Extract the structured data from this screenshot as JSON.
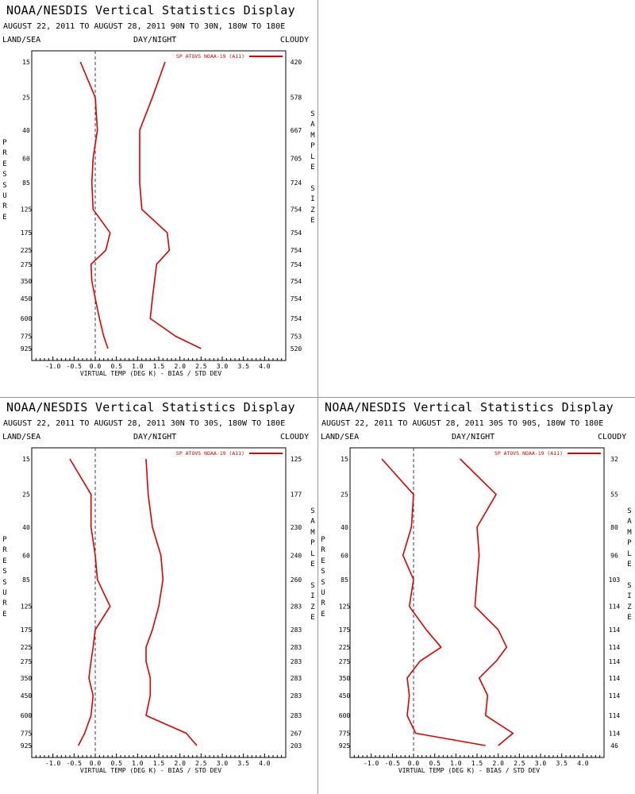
{
  "header": {
    "title": "NOAA/NESDIS Vertical Statistics Display",
    "land_sea": "LAND/SEA",
    "day_night": "DAY/NIGHT",
    "cloudy": "CLOUDY",
    "pressure_label": "PRESSURE",
    "sample_size_label": "SAMPLE SIZE",
    "xlabel": "VIRTUAL TEMP (DEG K) - BIAS / STD DEV"
  },
  "colors": {
    "series": "#e00000",
    "axis": "#000000",
    "zero_line": "#3a3a6a"
  },
  "chart_data": [
    {
      "type": "line",
      "subtitle": "AUGUST 22, 2011 TO AUGUST 28, 2011  90N TO 30N, 180W TO 180E",
      "legend": "SP ATOVS NOAA-19 (A11)",
      "xlim": [
        -1.5,
        4.5
      ],
      "xticks": [
        "-1.0",
        "-0.5",
        "0.0",
        "0.5",
        "1.0",
        "1.5",
        "2.0",
        "2.5",
        "3.0",
        "3.5",
        "4.0"
      ],
      "pressure_levels": [
        "15",
        "25",
        "40",
        "60",
        "85",
        "125",
        "175",
        "225",
        "275",
        "350",
        "450",
        "600",
        "775",
        "925"
      ],
      "sample_size": [
        "420",
        "578",
        "667",
        "705",
        "724",
        "754",
        "754",
        "754",
        "754",
        "754",
        "754",
        "754",
        "753",
        "520"
      ],
      "series": [
        {
          "values": [
            -0.35,
            0.0,
            0.05,
            -0.05,
            -0.08,
            -0.05,
            0.35,
            0.25,
            -0.1,
            -0.08,
            0.0,
            0.1,
            0.2,
            0.3
          ]
        },
        {
          "values": [
            1.65,
            1.35,
            1.05,
            1.05,
            1.05,
            1.1,
            1.7,
            1.75,
            1.45,
            1.4,
            1.35,
            1.3,
            1.9,
            2.5
          ]
        }
      ]
    },
    {
      "type": "line",
      "subtitle": "AUGUST 22, 2011 TO AUGUST 28, 2011  30N TO 30S, 180W TO 180E",
      "legend": "SP ATOVS NOAA-19 (A11)",
      "xlim": [
        -1.5,
        4.5
      ],
      "xticks": [
        "-1.0",
        "-0.5",
        "0.0",
        "0.5",
        "1.0",
        "1.5",
        "2.0",
        "2.5",
        "3.0",
        "3.5",
        "4.0"
      ],
      "pressure_levels": [
        "15",
        "25",
        "40",
        "60",
        "85",
        "125",
        "175",
        "225",
        "275",
        "350",
        "450",
        "600",
        "775",
        "925"
      ],
      "sample_size": [
        "125",
        "177",
        "230",
        "240",
        "260",
        "283",
        "283",
        "283",
        "283",
        "283",
        "283",
        "283",
        "267",
        "203"
      ],
      "series": [
        {
          "values": [
            -0.6,
            -0.1,
            -0.1,
            0.0,
            0.05,
            0.35,
            0.0,
            -0.05,
            -0.1,
            -0.15,
            -0.05,
            -0.1,
            -0.25,
            -0.4
          ]
        },
        {
          "values": [
            1.2,
            1.25,
            1.35,
            1.55,
            1.6,
            1.5,
            1.35,
            1.2,
            1.2,
            1.3,
            1.3,
            1.2,
            2.15,
            2.4
          ]
        }
      ]
    },
    {
      "type": "line",
      "subtitle": "AUGUST 22, 2011 TO AUGUST 28, 2011  30S TO 90S, 180W TO 180E",
      "legend": "SP ATOVS NOAA-19 (A11)",
      "xlim": [
        -1.5,
        4.5
      ],
      "xticks": [
        "-1.0",
        "-0.5",
        "0.0",
        "0.5",
        "1.0",
        "1.5",
        "2.0",
        "2.5",
        "3.0",
        "3.5",
        "4.0"
      ],
      "pressure_levels": [
        "15",
        "25",
        "40",
        "60",
        "85",
        "125",
        "175",
        "225",
        "275",
        "350",
        "450",
        "600",
        "775",
        "925"
      ],
      "sample_size": [
        "32",
        "55",
        "80",
        "96",
        "103",
        "114",
        "114",
        "114",
        "114",
        "114",
        "114",
        "114",
        "114",
        "46"
      ],
      "series": [
        {
          "values": [
            -0.75,
            0.0,
            -0.05,
            -0.25,
            0.0,
            -0.1,
            0.3,
            0.65,
            0.15,
            -0.15,
            -0.1,
            -0.15,
            0.05,
            1.7
          ]
        },
        {
          "values": [
            1.1,
            1.95,
            1.5,
            1.55,
            1.5,
            1.45,
            2.0,
            2.2,
            1.95,
            1.55,
            1.75,
            1.7,
            2.35,
            2.0
          ]
        }
      ]
    }
  ]
}
